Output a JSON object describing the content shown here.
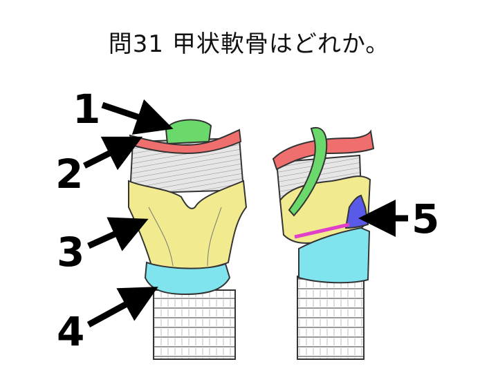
{
  "title": "問31 甲状軟骨はどれか。",
  "labels": [
    "1",
    "2",
    "3",
    "4",
    "5"
  ],
  "colors": {
    "green": "#6ad86a",
    "red": "#ef6f6f",
    "yellow": "#f1ea8f",
    "cyan": "#7fe4ee",
    "blue": "#5a5ae8",
    "magenta": "#e040c8",
    "arrow": "#000000"
  }
}
